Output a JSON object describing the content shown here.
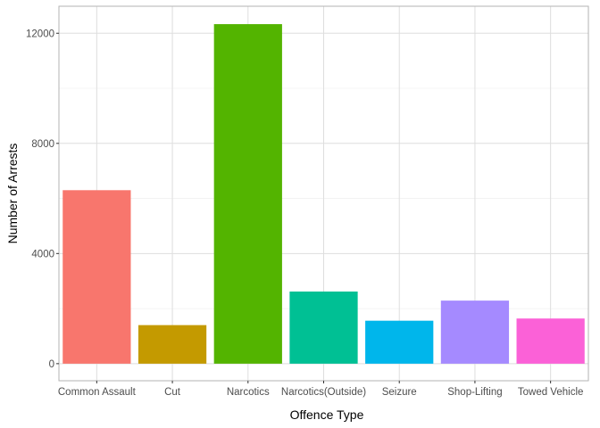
{
  "chart_data": {
    "type": "bar",
    "title": "",
    "xlabel": "Offence Type",
    "ylabel": "Number of Arrests",
    "categories": [
      "Common Assault",
      "Cut",
      "Narcotics",
      "Narcotics(Outside)",
      "Seizure",
      "Shop-Lifting",
      "Towed Vehicle"
    ],
    "values": [
      6300,
      1400,
      12330,
      2620,
      1560,
      2290,
      1640
    ],
    "colors": [
      "#F8766D",
      "#C49A00",
      "#53B400",
      "#00C094",
      "#00B6EB",
      "#A58AFF",
      "#FB61D7"
    ],
    "ylim": [
      -620,
      12980
    ],
    "yticks": [
      0,
      4000,
      8000,
      12000
    ],
    "ytick_labels": [
      "0",
      "4000",
      "8000",
      "12000"
    ],
    "grid": true,
    "legend": "none"
  }
}
